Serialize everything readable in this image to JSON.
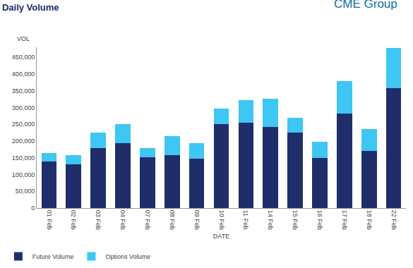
{
  "chart_data": {
    "type": "bar",
    "title": "Daily Volume",
    "logo": "CME Group",
    "xlabel": "DATE",
    "ylabel": "VOL",
    "stacked": true,
    "grid": false,
    "legend": "bottom left",
    "categories": [
      "01 Feb",
      "02 Feb",
      "03 Feb",
      "04 Feb",
      "07 Feb",
      "08 Feb",
      "09 Feb",
      "10 Feb",
      "11 Feb",
      "14 Feb",
      "15 Feb",
      "16 Feb",
      "17 Feb",
      "18 Feb",
      "22 Feb"
    ],
    "series": [
      {
        "name": "Future Volume",
        "color": "#1f2d6b",
        "values": [
          138000,
          130000,
          180000,
          193000,
          152000,
          158000,
          147000,
          250000,
          255000,
          242000,
          225000,
          150000,
          283000,
          170000,
          358000
        ]
      },
      {
        "name": "Options Volume",
        "color": "#3ec6f4",
        "values": [
          27000,
          28000,
          45000,
          57000,
          28000,
          57000,
          46000,
          47000,
          67000,
          85000,
          45000,
          48000,
          95000,
          65000,
          120000
        ]
      }
    ],
    "ylim": [
      0,
      480000
    ],
    "yticks": [
      0,
      {
        "value": 50000,
        "label": "50,000"
      },
      {
        "value": 100000,
        "label": "100,000"
      },
      {
        "value": 150000,
        "label": "150,000"
      },
      {
        "value": 200000,
        "label": "200,000"
      },
      {
        "value": 250000,
        "label": "250,000"
      },
      {
        "value": 300000,
        "label": "300,000"
      },
      {
        "value": 350000,
        "label": "350,000"
      },
      {
        "value": 400000,
        "label": "400,000"
      },
      {
        "value": 450000,
        "label": "450,000"
      }
    ]
  }
}
